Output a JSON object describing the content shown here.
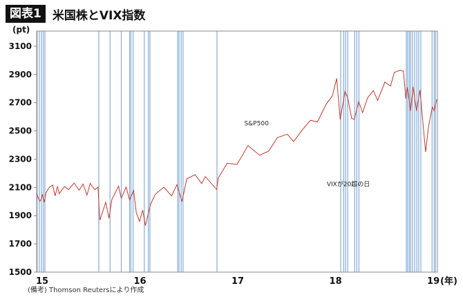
{
  "header": {
    "badge": "図表1",
    "title": "米国株とVIX指数"
  },
  "note": "(備考) Thomson Reutersにより作成",
  "chart_data": {
    "type": "line",
    "ylabel": "(pt)",
    "xunit": "(年)",
    "ylim": [
      1500,
      3207
    ],
    "xlim": [
      "2015-01-01",
      "2019-02-06"
    ],
    "yticks": [
      1500,
      1700,
      1900,
      2100,
      2300,
      2500,
      2700,
      2900,
      3100
    ],
    "xticks": [
      {
        "date": "2015-01-01",
        "label": "15"
      },
      {
        "date": "2016-01-01",
        "label": "16"
      },
      {
        "date": "2017-01-01",
        "label": "17"
      },
      {
        "date": "2018-01-01",
        "label": "18"
      },
      {
        "date": "2019-01-01",
        "label": "19"
      }
    ],
    "grid": false,
    "colors": {
      "line": "#c0392b",
      "vix": "#5b8fc9"
    },
    "annotations": [
      {
        "text": "S&P500",
        "date": "2017-02-15",
        "value": 2540
      },
      {
        "text": "VIXが20超の日",
        "date": "2017-12-20",
        "value": 2110
      }
    ],
    "series": [
      {
        "name": "S&P500",
        "points": [
          [
            "2015-01-02",
            2058
          ],
          [
            "2015-01-07",
            2025
          ],
          [
            "2015-01-13",
            2002
          ],
          [
            "2015-01-20",
            2022
          ],
          [
            "2015-01-23",
            2051
          ],
          [
            "2015-01-30",
            1995
          ],
          [
            "2015-02-05",
            2062
          ],
          [
            "2015-02-17",
            2100
          ],
          [
            "2015-03-02",
            2117
          ],
          [
            "2015-03-11",
            2040
          ],
          [
            "2015-03-20",
            2108
          ],
          [
            "2015-03-26",
            2056
          ],
          [
            "2015-04-15",
            2106
          ],
          [
            "2015-04-30",
            2085
          ],
          [
            "2015-05-21",
            2131
          ],
          [
            "2015-06-09",
            2080
          ],
          [
            "2015-06-23",
            2124
          ],
          [
            "2015-07-08",
            2046
          ],
          [
            "2015-07-20",
            2128
          ],
          [
            "2015-08-06",
            2083
          ],
          [
            "2015-08-18",
            2102
          ],
          [
            "2015-08-25",
            1868
          ],
          [
            "2015-09-16",
            1995
          ],
          [
            "2015-09-28",
            1881
          ],
          [
            "2015-10-09",
            2014
          ],
          [
            "2015-11-03",
            2109
          ],
          [
            "2015-11-13",
            2023
          ],
          [
            "2015-12-01",
            2102
          ],
          [
            "2015-12-14",
            2012
          ],
          [
            "2015-12-29",
            2078
          ],
          [
            "2016-01-08",
            1922
          ],
          [
            "2016-01-20",
            1859
          ],
          [
            "2016-02-01",
            1939
          ],
          [
            "2016-02-11",
            1829
          ],
          [
            "2016-03-01",
            1978
          ],
          [
            "2016-03-18",
            2049
          ],
          [
            "2016-04-20",
            2102
          ],
          [
            "2016-05-19",
            2040
          ],
          [
            "2016-06-08",
            2119
          ],
          [
            "2016-06-27",
            2000
          ],
          [
            "2016-07-15",
            2161
          ],
          [
            "2016-08-15",
            2190
          ],
          [
            "2016-09-09",
            2127
          ],
          [
            "2016-09-22",
            2177
          ],
          [
            "2016-11-04",
            2085
          ],
          [
            "2016-11-10",
            2167
          ],
          [
            "2016-12-13",
            2271
          ],
          [
            "2017-01-19",
            2263
          ],
          [
            "2017-03-01",
            2396
          ],
          [
            "2017-04-13",
            2328
          ],
          [
            "2017-05-17",
            2357
          ],
          [
            "2017-06-19",
            2453
          ],
          [
            "2017-07-26",
            2477
          ],
          [
            "2017-08-18",
            2425
          ],
          [
            "2017-09-20",
            2508
          ],
          [
            "2017-10-20",
            2575
          ],
          [
            "2017-11-15",
            2564
          ],
          [
            "2017-12-18",
            2690
          ],
          [
            "2018-01-10",
            2748
          ],
          [
            "2018-01-26",
            2872
          ],
          [
            "2018-02-08",
            2581
          ],
          [
            "2018-02-26",
            2779
          ],
          [
            "2018-03-08",
            2738
          ],
          [
            "2018-03-23",
            2588
          ],
          [
            "2018-04-02",
            2582
          ],
          [
            "2018-04-18",
            2708
          ],
          [
            "2018-05-03",
            2630
          ],
          [
            "2018-05-21",
            2733
          ],
          [
            "2018-06-12",
            2786
          ],
          [
            "2018-06-28",
            2716
          ],
          [
            "2018-07-25",
            2846
          ],
          [
            "2018-08-15",
            2818
          ],
          [
            "2018-08-29",
            2914
          ],
          [
            "2018-09-20",
            2930
          ],
          [
            "2018-10-02",
            2923
          ],
          [
            "2018-10-11",
            2728
          ],
          [
            "2018-10-17",
            2809
          ],
          [
            "2018-10-29",
            2641
          ],
          [
            "2018-11-07",
            2813
          ],
          [
            "2018-11-20",
            2641
          ],
          [
            "2018-12-03",
            2790
          ],
          [
            "2018-12-10",
            2637
          ],
          [
            "2018-12-24",
            2351
          ],
          [
            "2019-01-04",
            2532
          ],
          [
            "2019-01-18",
            2670
          ],
          [
            "2019-01-24",
            2642
          ],
          [
            "2019-02-04",
            2724
          ]
        ]
      }
    ],
    "vix_above_20_dates": [
      "2015-01-03",
      "2015-01-11",
      "2015-01-19",
      "2015-01-26",
      "2015-02-01",
      "2015-08-21",
      "2015-10-02",
      "2015-11-13",
      "2015-12-14",
      "2015-12-19",
      "2015-12-27",
      "2016-02-07",
      "2016-02-22",
      "2016-02-28",
      "2016-06-11",
      "2016-06-16",
      "2016-06-24",
      "2016-07-01",
      "2016-11-05",
      "2018-02-10",
      "2018-02-21",
      "2018-02-28",
      "2018-03-08",
      "2018-04-03",
      "2018-04-11",
      "2018-04-19",
      "2018-10-13",
      "2018-10-18",
      "2018-10-24",
      "2018-10-29",
      "2018-11-05",
      "2018-11-13",
      "2018-11-21",
      "2018-11-28",
      "2018-12-06",
      "2019-01-17",
      "2019-01-25",
      "2019-01-30"
    ]
  }
}
